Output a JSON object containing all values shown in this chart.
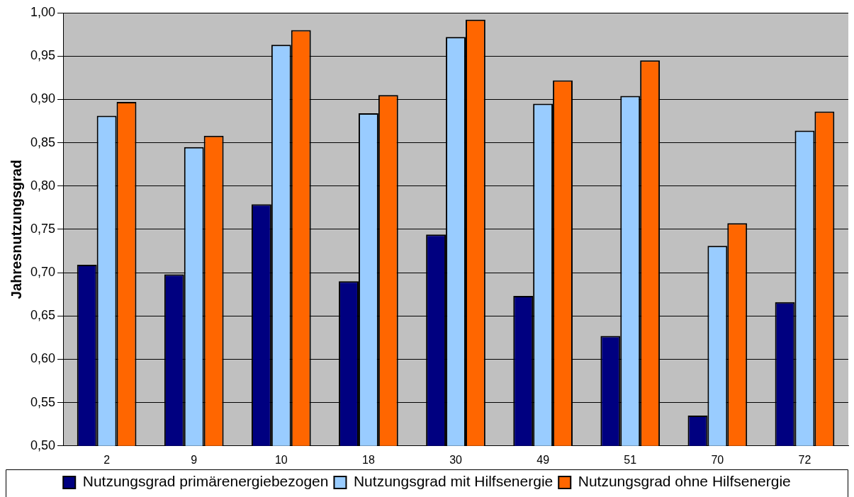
{
  "chart_data": {
    "type": "bar",
    "ylabel": "Jahresnutzungsgrad",
    "categories": [
      "2",
      "9",
      "10",
      "18",
      "30",
      "49",
      "51",
      "70",
      "72"
    ],
    "series": [
      {
        "name": "Nutzungsgrad primärenergiebezogen",
        "color": "#000080",
        "values": [
          0.709,
          0.698,
          0.779,
          0.69,
          0.744,
          0.673,
          0.627,
          0.535,
          0.666
        ]
      },
      {
        "name": "Nutzungsgrad mit Hilfsenergie",
        "color": "#99ccff",
        "values": [
          0.881,
          0.845,
          0.963,
          0.884,
          0.972,
          0.895,
          0.904,
          0.731,
          0.864
        ]
      },
      {
        "name": "Nutzungsgrad ohne Hilfsenergie",
        "color": "#ff6600",
        "values": [
          0.897,
          0.858,
          0.98,
          0.905,
          0.992,
          0.922,
          0.945,
          0.757,
          0.886
        ]
      }
    ],
    "ylim": [
      0.5,
      1.0
    ],
    "yticks": [
      {
        "value": 0.5,
        "label": "0,50"
      },
      {
        "value": 0.55,
        "label": "0,55"
      },
      {
        "value": 0.6,
        "label": "0,60"
      },
      {
        "value": 0.65,
        "label": "0,65"
      },
      {
        "value": 0.7,
        "label": "0,70"
      },
      {
        "value": 0.75,
        "label": "0,75"
      },
      {
        "value": 0.8,
        "label": "0,80"
      },
      {
        "value": 0.85,
        "label": "0,85"
      },
      {
        "value": 0.9,
        "label": "0,90"
      },
      {
        "value": 0.95,
        "label": "0,95"
      },
      {
        "value": 1.0,
        "label": "1,00"
      }
    ],
    "grid": "y",
    "legend": "bottom"
  }
}
